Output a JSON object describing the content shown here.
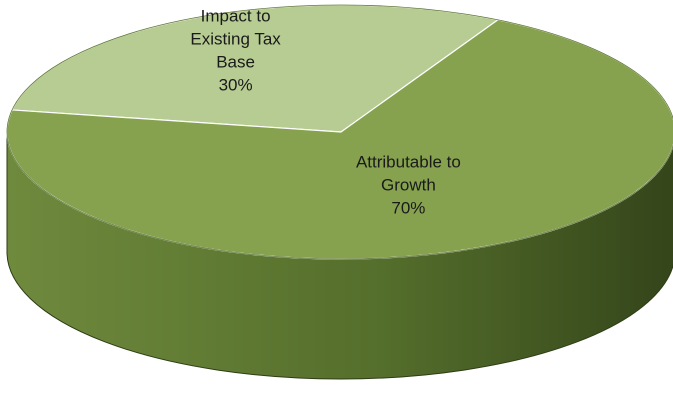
{
  "chart_data": {
    "type": "pie",
    "style": "3d",
    "title": "",
    "slices": [
      {
        "name_lines": [
          "Impact to",
          "Existing Tax",
          "Base"
        ],
        "percent_label": "30%",
        "value": 30,
        "color": "#b7cc92"
      },
      {
        "name_lines": [
          "Attributable to",
          "Growth"
        ],
        "percent_label": "70%",
        "value": 70,
        "color": "#86a24f"
      }
    ],
    "side_colors": {
      "light": "#6f8a3d",
      "mid": "#556f2c",
      "dark": "#34451a"
    },
    "legend": "none"
  }
}
